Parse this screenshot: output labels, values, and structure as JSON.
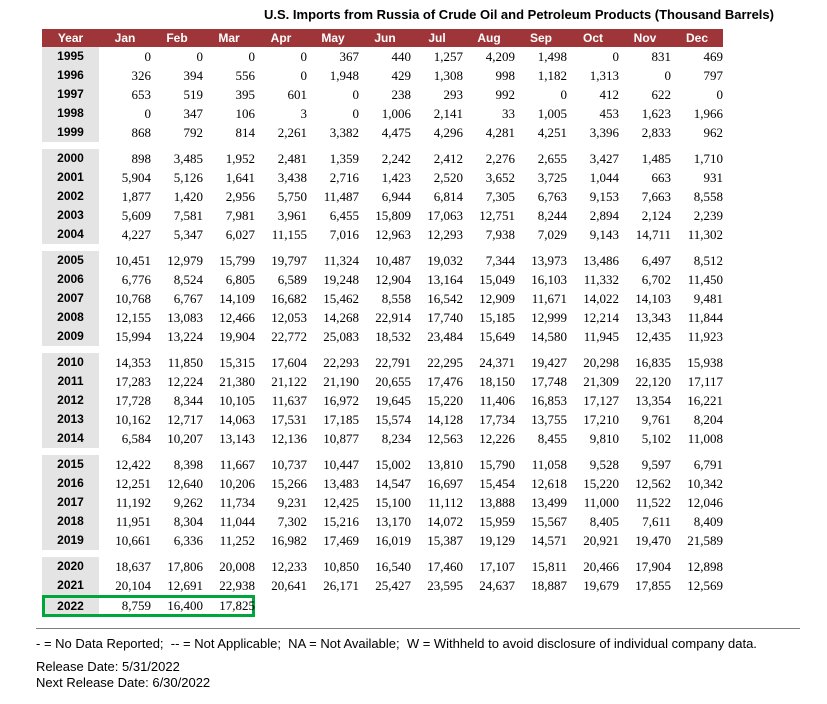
{
  "colors": {
    "header_bg": "#9e3639",
    "year_bg": "#e4e4e4",
    "highlight_green": "#00a53c"
  },
  "footer": {
    "legend": "- = No Data Reported;  -- = Not Applicable;  NA = Not Available;  W = Withheld to avoid disclosure of individual company data.",
    "release_date": "Release Date: 5/31/2022",
    "next_release_date": "Next Release Date: 6/30/2022"
  },
  "chart_data": {
    "type": "table",
    "title": "U.S. Imports from Russia of Crude Oil and Petroleum Products (Thousand Barrels)",
    "unit": "Thousand Barrels",
    "highlighted_year": "2022",
    "columns": [
      "Year",
      "Jan",
      "Feb",
      "Mar",
      "Apr",
      "May",
      "Jun",
      "Jul",
      "Aug",
      "Sep",
      "Oct",
      "Nov",
      "Dec"
    ],
    "groups": [
      [
        {
          "year": "1995",
          "values": [
            "0",
            "0",
            "0",
            "0",
            "367",
            "440",
            "1,257",
            "4,209",
            "1,498",
            "0",
            "831",
            "469"
          ]
        },
        {
          "year": "1996",
          "values": [
            "326",
            "394",
            "556",
            "0",
            "1,948",
            "429",
            "1,308",
            "998",
            "1,182",
            "1,313",
            "0",
            "797"
          ]
        },
        {
          "year": "1997",
          "values": [
            "653",
            "519",
            "395",
            "601",
            "0",
            "238",
            "293",
            "992",
            "0",
            "412",
            "622",
            "0"
          ]
        },
        {
          "year": "1998",
          "values": [
            "0",
            "347",
            "106",
            "3",
            "0",
            "1,006",
            "2,141",
            "33",
            "1,005",
            "453",
            "1,623",
            "1,966"
          ]
        },
        {
          "year": "1999",
          "values": [
            "868",
            "792",
            "814",
            "2,261",
            "3,382",
            "4,475",
            "4,296",
            "4,281",
            "4,251",
            "3,396",
            "2,833",
            "962"
          ]
        }
      ],
      [
        {
          "year": "2000",
          "values": [
            "898",
            "3,485",
            "1,952",
            "2,481",
            "1,359",
            "2,242",
            "2,412",
            "2,276",
            "2,655",
            "3,427",
            "1,485",
            "1,710"
          ]
        },
        {
          "year": "2001",
          "values": [
            "5,904",
            "5,126",
            "1,641",
            "3,438",
            "2,716",
            "1,423",
            "2,520",
            "3,652",
            "3,725",
            "1,044",
            "663",
            "931"
          ]
        },
        {
          "year": "2002",
          "values": [
            "1,877",
            "1,420",
            "2,956",
            "5,750",
            "11,487",
            "6,944",
            "6,814",
            "7,305",
            "6,763",
            "9,153",
            "7,663",
            "8,558"
          ]
        },
        {
          "year": "2003",
          "values": [
            "5,609",
            "7,581",
            "7,981",
            "3,961",
            "6,455",
            "15,809",
            "17,063",
            "12,751",
            "8,244",
            "2,894",
            "2,124",
            "2,239"
          ]
        },
        {
          "year": "2004",
          "values": [
            "4,227",
            "5,347",
            "6,027",
            "11,155",
            "7,016",
            "12,963",
            "12,293",
            "7,938",
            "7,029",
            "9,143",
            "14,711",
            "11,302"
          ]
        }
      ],
      [
        {
          "year": "2005",
          "values": [
            "10,451",
            "12,979",
            "15,799",
            "19,797",
            "11,324",
            "10,487",
            "19,032",
            "7,344",
            "13,973",
            "13,486",
            "6,497",
            "8,512"
          ]
        },
        {
          "year": "2006",
          "values": [
            "6,776",
            "8,524",
            "6,805",
            "6,589",
            "19,248",
            "12,904",
            "13,164",
            "15,049",
            "16,103",
            "11,332",
            "6,702",
            "11,450"
          ]
        },
        {
          "year": "2007",
          "values": [
            "10,768",
            "6,767",
            "14,109",
            "16,682",
            "15,462",
            "8,558",
            "16,542",
            "12,909",
            "11,671",
            "14,022",
            "14,103",
            "9,481"
          ]
        },
        {
          "year": "2008",
          "values": [
            "12,155",
            "13,083",
            "12,466",
            "12,053",
            "14,268",
            "22,914",
            "17,740",
            "15,185",
            "12,999",
            "12,214",
            "13,343",
            "11,844"
          ]
        },
        {
          "year": "2009",
          "values": [
            "15,994",
            "13,224",
            "19,904",
            "22,772",
            "25,083",
            "18,532",
            "23,484",
            "15,649",
            "14,580",
            "11,945",
            "12,435",
            "11,923"
          ]
        }
      ],
      [
        {
          "year": "2010",
          "values": [
            "14,353",
            "11,850",
            "15,315",
            "17,604",
            "22,293",
            "22,791",
            "22,295",
            "24,371",
            "19,427",
            "20,298",
            "16,835",
            "15,938"
          ]
        },
        {
          "year": "2011",
          "values": [
            "17,283",
            "12,224",
            "21,380",
            "21,122",
            "21,190",
            "20,655",
            "17,476",
            "18,150",
            "17,748",
            "21,309",
            "22,120",
            "17,117"
          ]
        },
        {
          "year": "2012",
          "values": [
            "17,728",
            "8,344",
            "10,105",
            "11,637",
            "16,972",
            "19,645",
            "15,220",
            "11,406",
            "16,853",
            "17,127",
            "13,354",
            "16,221"
          ]
        },
        {
          "year": "2013",
          "values": [
            "10,162",
            "12,717",
            "14,063",
            "17,531",
            "17,185",
            "15,574",
            "14,128",
            "17,734",
            "13,755",
            "17,210",
            "9,761",
            "8,204"
          ]
        },
        {
          "year": "2014",
          "values": [
            "6,584",
            "10,207",
            "13,143",
            "12,136",
            "10,877",
            "8,234",
            "12,563",
            "12,226",
            "8,455",
            "9,810",
            "5,102",
            "11,008"
          ]
        }
      ],
      [
        {
          "year": "2015",
          "values": [
            "12,422",
            "8,398",
            "11,667",
            "10,737",
            "10,447",
            "15,002",
            "13,810",
            "15,790",
            "11,058",
            "9,528",
            "9,597",
            "6,791"
          ]
        },
        {
          "year": "2016",
          "values": [
            "12,251",
            "12,640",
            "10,206",
            "15,266",
            "13,483",
            "14,547",
            "16,697",
            "15,454",
            "12,618",
            "15,220",
            "12,562",
            "10,342"
          ]
        },
        {
          "year": "2017",
          "values": [
            "11,192",
            "9,262",
            "11,734",
            "9,231",
            "12,425",
            "15,100",
            "11,112",
            "13,888",
            "13,499",
            "11,000",
            "11,522",
            "12,046"
          ]
        },
        {
          "year": "2018",
          "values": [
            "11,951",
            "8,304",
            "11,044",
            "7,302",
            "15,216",
            "13,170",
            "14,072",
            "15,959",
            "15,567",
            "8,405",
            "7,611",
            "8,409"
          ]
        },
        {
          "year": "2019",
          "values": [
            "10,661",
            "6,336",
            "11,252",
            "16,982",
            "17,469",
            "16,019",
            "15,387",
            "19,129",
            "14,571",
            "20,921",
            "19,470",
            "21,589"
          ]
        }
      ],
      [
        {
          "year": "2020",
          "values": [
            "18,637",
            "17,806",
            "20,008",
            "12,233",
            "10,850",
            "16,540",
            "17,460",
            "17,107",
            "15,811",
            "20,466",
            "17,904",
            "12,898"
          ]
        },
        {
          "year": "2021",
          "values": [
            "20,104",
            "12,691",
            "22,938",
            "20,641",
            "26,171",
            "25,427",
            "23,595",
            "24,637",
            "18,887",
            "19,679",
            "17,855",
            "12,569"
          ]
        },
        {
          "year": "2022",
          "values": [
            "8,759",
            "16,400",
            "17,825"
          ]
        }
      ]
    ]
  }
}
